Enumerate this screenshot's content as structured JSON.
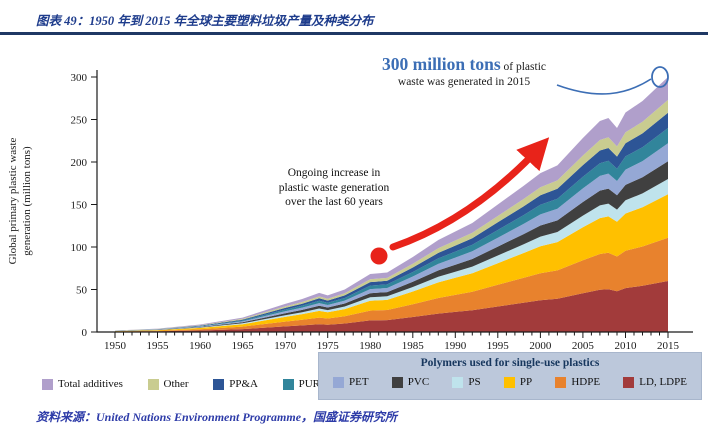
{
  "header": {
    "title": "图表 49：1950 年到 2015 年全球主要塑料垃圾产量及种类分布"
  },
  "footer": {
    "source_prefix": "资料来源：",
    "source_text": "United Nations Environment Programme，国盛证券研究所"
  },
  "colors": {
    "title_blue": "#1E3C8C",
    "rule_navy": "#1F3864",
    "source_blue": "#2D3BA8",
    "accent_red": "#E8231A",
    "accent_blue": "#3C6EB5",
    "legend_box_bg": "#BCC8DB"
  },
  "annotations": {
    "headline_number": "300 million tons",
    "headline_rest": " of plastic",
    "headline_line2": "waste was generated in 2015",
    "note_lines": [
      "Ongoing increase in",
      "plastic waste generation",
      "over the last 60 years"
    ]
  },
  "legend": {
    "box_title": "Polymers used for single-use plastics",
    "outside_items": [
      {
        "label": "Total additives",
        "color": "#B09FCB"
      },
      {
        "label": "Other",
        "color": "#C9CC90"
      },
      {
        "label": "PP&A",
        "color": "#2D5596"
      },
      {
        "label": "PUR",
        "color": "#31859B"
      }
    ],
    "box_items": [
      {
        "label": "PET",
        "color": "#95A8D5"
      },
      {
        "label": "PVC",
        "color": "#404040"
      },
      {
        "label": "PS",
        "color": "#BFE3EC"
      },
      {
        "label": "PP",
        "color": "#FFC000"
      },
      {
        "label": "HDPE",
        "color": "#E8822D"
      },
      {
        "label": "LD, LDPE",
        "color": "#A23B3B"
      }
    ]
  },
  "chart_data": {
    "type": "area",
    "stacked": true,
    "title": "",
    "ylabel_lines": [
      "Global primary plastic waste",
      "generation (million tons)"
    ],
    "ylim": [
      0,
      300
    ],
    "yticks": [
      0,
      50,
      100,
      150,
      200,
      250,
      300
    ],
    "xticks": [
      1950,
      1955,
      1960,
      1965,
      1970,
      1975,
      1980,
      1985,
      1990,
      1995,
      2000,
      2005,
      2010,
      2015
    ],
    "x": [
      1950,
      1955,
      1960,
      1965,
      1970,
      1972,
      1974,
      1975,
      1977,
      1980,
      1982,
      1985,
      1988,
      1990,
      1992,
      1995,
      1998,
      2000,
      2002,
      2005,
      2007,
      2008,
      2009,
      2010,
      2012,
      2015
    ],
    "series": [
      {
        "name": "LD, LDPE",
        "color": "#A23B3B",
        "values": [
          0.4,
          0.8,
          1.8,
          3.4,
          6.6,
          7.8,
          9.2,
          8.6,
          10,
          13.6,
          14,
          17.6,
          21.6,
          23.6,
          25.6,
          30,
          34.4,
          37.4,
          39.2,
          45.6,
          49.6,
          50.4,
          48,
          51.6,
          54.4,
          60
        ]
      },
      {
        "name": "HDPE",
        "color": "#E8822D",
        "values": [
          0.3,
          0.7,
          1.5,
          2.9,
          5.6,
          6.6,
          7.8,
          7.3,
          8.5,
          11.6,
          11.9,
          15,
          18.4,
          20.1,
          21.8,
          25.5,
          29.2,
          31.8,
          33.3,
          38.8,
          42.2,
          42.8,
          40.8,
          43.9,
          46.2,
          51
        ]
      },
      {
        "name": "PP",
        "color": "#FFC000",
        "values": [
          0.3,
          0.7,
          1.5,
          2.9,
          5.6,
          6.6,
          7.8,
          7.3,
          8.5,
          11.6,
          11.9,
          15,
          18.4,
          20.1,
          21.8,
          25.5,
          29.2,
          31.8,
          33.3,
          38.8,
          42.2,
          42.8,
          40.8,
          43.9,
          46.2,
          51
        ]
      },
      {
        "name": "PS",
        "color": "#BFE3EC",
        "values": [
          0.1,
          0.2,
          0.5,
          1,
          2,
          2.3,
          2.8,
          2.6,
          3,
          4.1,
          4.2,
          5.3,
          6.5,
          7.1,
          7.7,
          9,
          10.3,
          11.2,
          11.8,
          13.7,
          14.9,
          15.1,
          14.4,
          15.5,
          16.3,
          18
        ]
      },
      {
        "name": "PVC",
        "color": "#404040",
        "values": [
          0.1,
          0.3,
          0.6,
          1.2,
          2.3,
          2.7,
          3.2,
          3,
          3.5,
          4.8,
          4.9,
          6.2,
          7.6,
          8.3,
          9,
          10.5,
          12,
          13.1,
          13.7,
          16,
          17.4,
          17.6,
          16.8,
          18.1,
          19,
          21
        ]
      },
      {
        "name": "PET",
        "color": "#95A8D5",
        "values": [
          0.1,
          0.3,
          0.6,
          1.2,
          2.3,
          2.7,
          3.2,
          3,
          3.5,
          4.8,
          4.9,
          6.2,
          7.6,
          8.3,
          9,
          10.5,
          12,
          13.1,
          13.7,
          16,
          17.4,
          17.6,
          16.8,
          18.1,
          19,
          21
        ]
      },
      {
        "name": "PUR",
        "color": "#31859B",
        "values": [
          0.1,
          0.2,
          0.5,
          1,
          2,
          2.3,
          2.8,
          2.6,
          3,
          4.1,
          4.2,
          5.3,
          6.5,
          7.1,
          7.7,
          9,
          10.3,
          11.2,
          11.8,
          13.7,
          14.9,
          15.1,
          14.4,
          15.5,
          16.3,
          18
        ]
      },
      {
        "name": "PP&A",
        "color": "#2D5596",
        "values": [
          0.1,
          0.2,
          0.5,
          1,
          2,
          2.3,
          2.8,
          2.6,
          3,
          4.1,
          4.2,
          5.3,
          6.5,
          7.1,
          7.7,
          9,
          10.3,
          11.2,
          11.8,
          13.7,
          14.9,
          15.1,
          14.4,
          15.5,
          16.3,
          18
        ]
      },
      {
        "name": "Other",
        "color": "#C9CC90",
        "values": [
          0.1,
          0.2,
          0.5,
          0.9,
          1.7,
          2,
          2.3,
          2.2,
          2.5,
          3.4,
          3.5,
          4.4,
          5.4,
          5.9,
          6.4,
          7.5,
          8.6,
          9.4,
          9.8,
          11.4,
          12.4,
          12.6,
          12,
          12.9,
          13.6,
          15
        ]
      },
      {
        "name": "Total additives",
        "color": "#B09FCB",
        "values": [
          0.2,
          0.4,
          0.8,
          1.5,
          3,
          3.5,
          4.1,
          3.9,
          4.5,
          6.1,
          6.3,
          7.9,
          9.7,
          10.6,
          11.5,
          13.5,
          15.5,
          16.8,
          17.6,
          20.5,
          22.3,
          22.7,
          21.6,
          23.2,
          24.5,
          27
        ]
      }
    ],
    "annotation_values": {
      "peak_year": 2015,
      "peak_total": 300
    }
  }
}
